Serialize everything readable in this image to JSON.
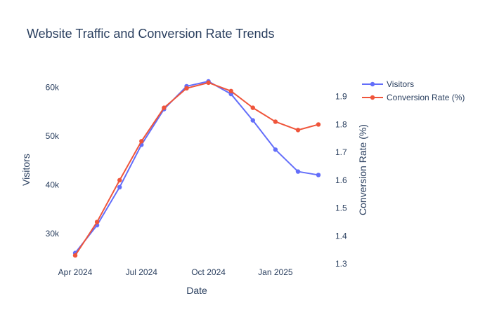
{
  "chart_data": {
    "type": "line",
    "title": "Website Traffic and Conversion Rate Trends",
    "xlabel": "Date",
    "ylabel": "Visitors",
    "y2label": "Conversion Rate (%)",
    "x": [
      "2024-04-01",
      "2024-05-01",
      "2024-06-01",
      "2024-07-01",
      "2024-08-01",
      "2024-09-01",
      "2024-10-01",
      "2024-11-01",
      "2024-12-01",
      "2025-01-01",
      "2025-02-01",
      "2025-03-01"
    ],
    "x_ticks": [
      {
        "date": "2024-04-01",
        "label": "Apr 2024"
      },
      {
        "date": "2024-07-01",
        "label": "Jul 2024"
      },
      {
        "date": "2024-10-01",
        "label": "Oct 2024"
      },
      {
        "date": "2025-01-01",
        "label": "Jan 2025"
      }
    ],
    "y_ticks": [
      {
        "value": 30000,
        "label": "30k"
      },
      {
        "value": 40000,
        "label": "40k"
      },
      {
        "value": 50000,
        "label": "50k"
      },
      {
        "value": 60000,
        "label": "60k"
      }
    ],
    "y2_ticks": [
      {
        "value": 1.3,
        "label": "1.3"
      },
      {
        "value": 1.4,
        "label": "1.4"
      },
      {
        "value": 1.5,
        "label": "1.5"
      },
      {
        "value": 1.6,
        "label": "1.6"
      },
      {
        "value": 1.7,
        "label": "1.7"
      },
      {
        "value": 1.8,
        "label": "1.8"
      },
      {
        "value": 1.9,
        "label": "1.9"
      }
    ],
    "ylim": [
      23500,
      63500
    ],
    "y2lim": [
      1.295,
      1.995
    ],
    "grid": false,
    "legend_position": "top-right",
    "series": [
      {
        "name": "Visitors",
        "axis": "y",
        "color": "#636efa",
        "values": [
          26000,
          31700,
          39500,
          48200,
          55500,
          60200,
          61200,
          58600,
          53200,
          47200,
          42700,
          42000
        ]
      },
      {
        "name": "Conversion Rate (%)",
        "axis": "y2",
        "color": "#ef553b",
        "values": [
          1.33,
          1.45,
          1.6,
          1.74,
          1.86,
          1.93,
          1.95,
          1.92,
          1.86,
          1.81,
          1.78,
          1.8
        ]
      }
    ]
  }
}
